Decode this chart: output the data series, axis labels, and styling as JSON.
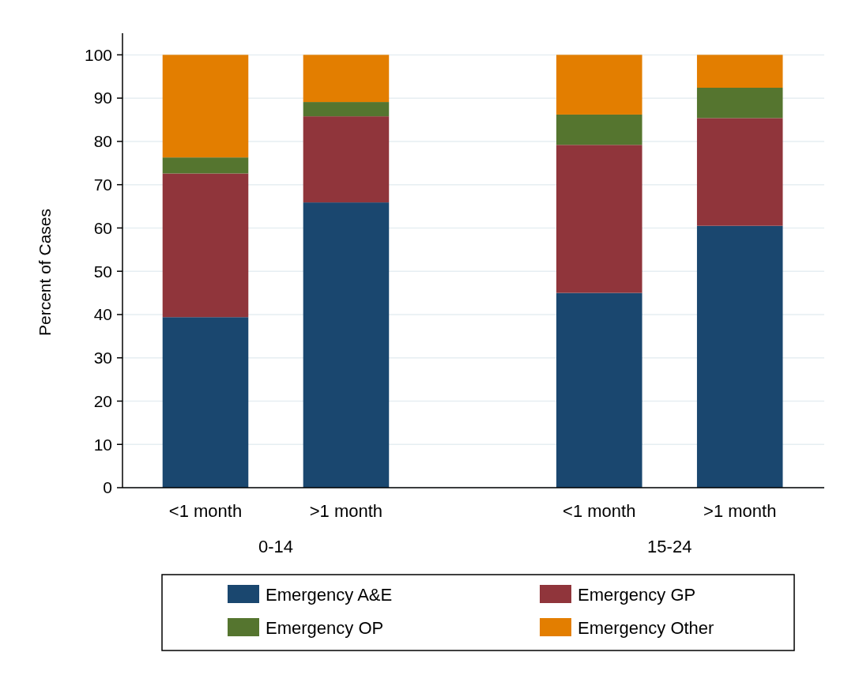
{
  "chart_data": {
    "type": "bar",
    "stacked": true,
    "ylabel": "Percent of Cases",
    "categories": [
      "<1 month",
      ">1 month",
      "<1 month",
      ">1 month"
    ],
    "annotations": [
      "0-14",
      "15-24"
    ],
    "series": [
      {
        "name": "Emergency A&E",
        "color": "#1a476f",
        "values": [
          39.4,
          65.9,
          45.0,
          60.5
        ]
      },
      {
        "name": "Emergency GP",
        "color": "#90353b",
        "values": [
          33.2,
          19.9,
          34.2,
          24.9
        ]
      },
      {
        "name": "Emergency OP",
        "color": "#55752f",
        "values": [
          3.7,
          3.3,
          7.0,
          7.0
        ]
      },
      {
        "name": "Emergency Other",
        "color": "#e37e00",
        "values": [
          23.7,
          10.9,
          13.8,
          7.6
        ]
      }
    ],
    "ylim": [
      0,
      105
    ],
    "yticks": [
      0,
      10,
      20,
      30,
      40,
      50,
      60,
      70,
      80,
      90,
      100
    ],
    "grid": "y",
    "legend": "bottom"
  }
}
